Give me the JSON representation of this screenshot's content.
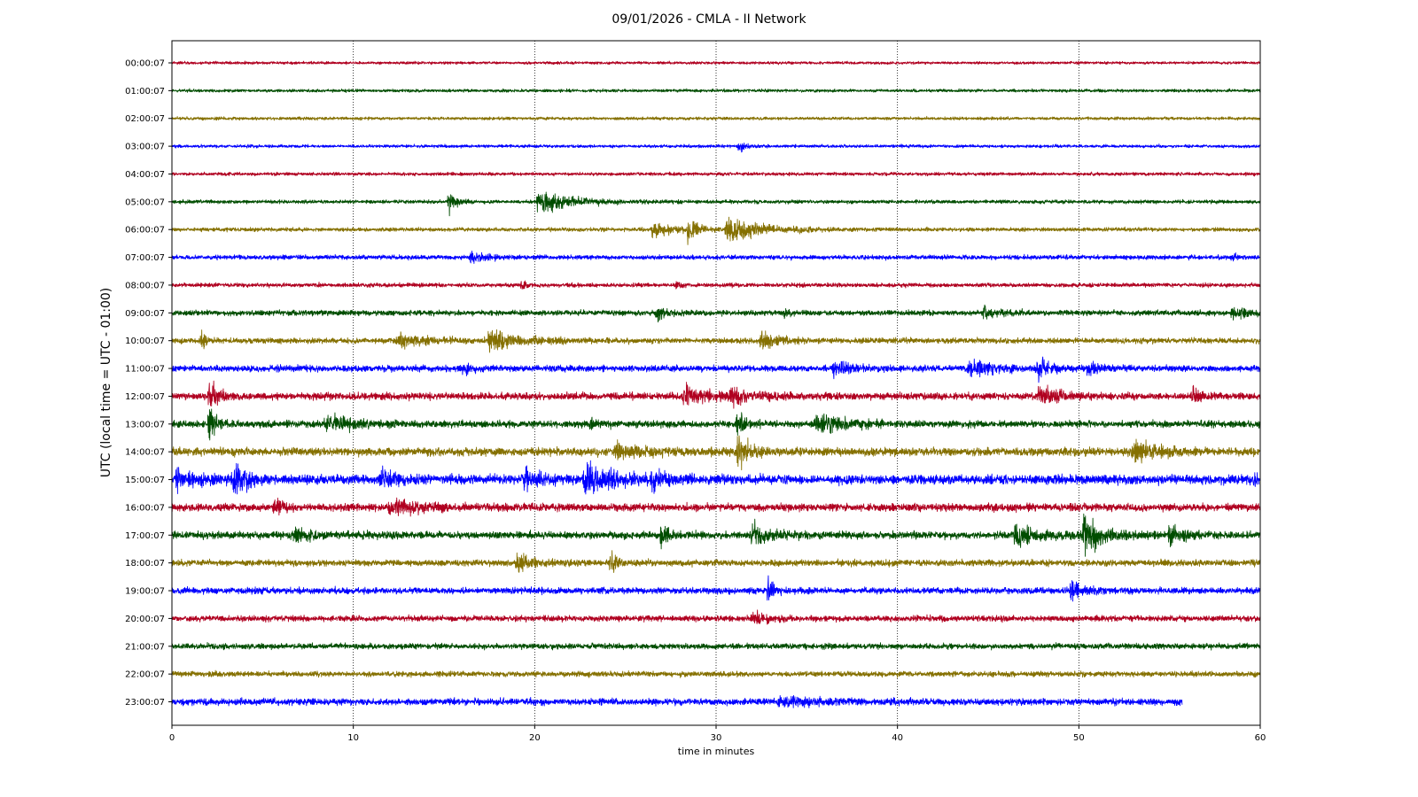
{
  "chart_data": {
    "type": "line",
    "title": "09/01/2026 - CMLA - II Network",
    "xlabel": "time in minutes",
    "ylabel": "UTC (local time = UTC - 01:00)",
    "xlim": [
      0,
      60
    ],
    "x_ticks": [
      "0",
      "10",
      "20",
      "30",
      "40",
      "50",
      "60"
    ],
    "x_tick_values": [
      0,
      10,
      20,
      30,
      40,
      50,
      60
    ],
    "vertical_gridlines": [
      10,
      20,
      30,
      40,
      50
    ],
    "grid": "vertical dotted",
    "colors": [
      "#b00020",
      "#004d00",
      "#857000",
      "#0000ff"
    ],
    "series": [
      {
        "label": "00:00:07",
        "color": "#b00020",
        "noise": 1.0,
        "end": 60,
        "events": []
      },
      {
        "label": "01:00:07",
        "color": "#004d00",
        "noise": 1.1,
        "end": 60,
        "events": []
      },
      {
        "label": "02:00:07",
        "color": "#857000",
        "noise": 1.1,
        "end": 60,
        "events": []
      },
      {
        "label": "03:00:07",
        "color": "#0000ff",
        "noise": 1.1,
        "end": 60,
        "events": [
          {
            "t": 31.3,
            "amp": 5,
            "dur": 0.6
          }
        ]
      },
      {
        "label": "04:00:07",
        "color": "#b00020",
        "noise": 1.2,
        "end": 60,
        "events": []
      },
      {
        "label": "05:00:07",
        "color": "#004d00",
        "noise": 1.3,
        "end": 60,
        "events": [
          {
            "t": 15.3,
            "amp": 8,
            "dur": 1.0
          },
          {
            "t": 20.2,
            "amp": 9,
            "dur": 3.5
          }
        ]
      },
      {
        "label": "06:00:07",
        "color": "#857000",
        "noise": 1.4,
        "end": 60,
        "events": [
          {
            "t": 26.5,
            "amp": 5,
            "dur": 2.5
          },
          {
            "t": 28.5,
            "amp": 10,
            "dur": 0.8
          },
          {
            "t": 30.6,
            "amp": 9,
            "dur": 4.0
          }
        ]
      },
      {
        "label": "07:00:07",
        "color": "#0000ff",
        "noise": 1.6,
        "end": 60,
        "events": [
          {
            "t": 16.5,
            "amp": 4,
            "dur": 1.5
          },
          {
            "t": 58.5,
            "amp": 3,
            "dur": 0.6
          }
        ]
      },
      {
        "label": "08:00:07",
        "color": "#b00020",
        "noise": 1.5,
        "end": 60,
        "events": [
          {
            "t": 19.3,
            "amp": 3,
            "dur": 0.6
          },
          {
            "t": 27.8,
            "amp": 2,
            "dur": 0.6
          }
        ]
      },
      {
        "label": "09:00:07",
        "color": "#004d00",
        "noise": 1.9,
        "end": 60,
        "events": [
          {
            "t": 26.8,
            "amp": 5,
            "dur": 1.2
          },
          {
            "t": 33.8,
            "amp": 3,
            "dur": 0.8
          },
          {
            "t": 44.8,
            "amp": 5,
            "dur": 1.5
          },
          {
            "t": 58.5,
            "amp": 5,
            "dur": 1.5
          }
        ]
      },
      {
        "label": "10:00:07",
        "color": "#857000",
        "noise": 2.0,
        "end": 60,
        "events": [
          {
            "t": 1.6,
            "amp": 7,
            "dur": 0.6
          },
          {
            "t": 12.5,
            "amp": 5,
            "dur": 3.5
          },
          {
            "t": 17.5,
            "amp": 7,
            "dur": 3.5
          },
          {
            "t": 32.5,
            "amp": 6,
            "dur": 2.0
          }
        ]
      },
      {
        "label": "11:00:07",
        "color": "#0000ff",
        "noise": 2.3,
        "end": 60,
        "events": [
          {
            "t": 16,
            "amp": 3,
            "dur": 1.2
          },
          {
            "t": 36.5,
            "amp": 6,
            "dur": 2.0
          },
          {
            "t": 44,
            "amp": 6,
            "dur": 3.0
          },
          {
            "t": 47.8,
            "amp": 7,
            "dur": 1.2
          },
          {
            "t": 50.5,
            "amp": 5,
            "dur": 1.2
          }
        ]
      },
      {
        "label": "12:00:07",
        "color": "#b00020",
        "noise": 2.6,
        "end": 60,
        "events": [
          {
            "t": 2.1,
            "amp": 12,
            "dur": 0.8
          },
          {
            "t": 28.2,
            "amp": 8,
            "dur": 2.5
          },
          {
            "t": 30.8,
            "amp": 5,
            "dur": 2.5
          },
          {
            "t": 47.8,
            "amp": 7,
            "dur": 2.0
          },
          {
            "t": 56.3,
            "amp": 6,
            "dur": 0.6
          }
        ]
      },
      {
        "label": "13:00:07",
        "color": "#004d00",
        "noise": 2.5,
        "end": 60,
        "events": [
          {
            "t": 2.1,
            "amp": 13,
            "dur": 1.0
          },
          {
            "t": 8.5,
            "amp": 4,
            "dur": 4.5
          },
          {
            "t": 23,
            "amp": 4,
            "dur": 1.0
          },
          {
            "t": 31.2,
            "amp": 9,
            "dur": 1.0
          },
          {
            "t": 35.5,
            "amp": 7,
            "dur": 3.0
          }
        ]
      },
      {
        "label": "14:00:07",
        "color": "#857000",
        "noise": 2.9,
        "end": 60,
        "events": [
          {
            "t": 24.5,
            "amp": 5,
            "dur": 4.0
          },
          {
            "t": 31.2,
            "amp": 11,
            "dur": 1.5
          },
          {
            "t": 53,
            "amp": 8,
            "dur": 2.5
          }
        ]
      },
      {
        "label": "15:00:07",
        "color": "#0000ff",
        "noise": 3.4,
        "end": 60,
        "events": [
          {
            "t": 0.3,
            "amp": 6,
            "dur": 2.5
          },
          {
            "t": 3.4,
            "amp": 11,
            "dur": 1.5
          },
          {
            "t": 11.5,
            "amp": 5,
            "dur": 2.5
          },
          {
            "t": 19.5,
            "amp": 6,
            "dur": 2.0
          },
          {
            "t": 22.8,
            "amp": 12,
            "dur": 3.0
          },
          {
            "t": 26.5,
            "amp": 6,
            "dur": 1.5
          },
          {
            "t": 59.7,
            "amp": 6,
            "dur": 0.3
          }
        ]
      },
      {
        "label": "16:00:07",
        "color": "#b00020",
        "noise": 2.8,
        "end": 60,
        "events": [
          {
            "t": 5.6,
            "amp": 6,
            "dur": 1.0
          },
          {
            "t": 12,
            "amp": 4,
            "dur": 5.0
          }
        ]
      },
      {
        "label": "17:00:07",
        "color": "#004d00",
        "noise": 2.7,
        "end": 60,
        "events": [
          {
            "t": 6.8,
            "amp": 5,
            "dur": 1.5
          },
          {
            "t": 27,
            "amp": 7,
            "dur": 1.0
          },
          {
            "t": 32,
            "amp": 9,
            "dur": 2.0
          },
          {
            "t": 46.5,
            "amp": 8,
            "dur": 2.5
          },
          {
            "t": 50.3,
            "amp": 14,
            "dur": 2.0
          },
          {
            "t": 55,
            "amp": 6,
            "dur": 1.5
          }
        ]
      },
      {
        "label": "18:00:07",
        "color": "#857000",
        "noise": 2.3,
        "end": 60,
        "events": [
          {
            "t": 19,
            "amp": 7,
            "dur": 2.0
          },
          {
            "t": 24.2,
            "amp": 7,
            "dur": 0.6
          }
        ]
      },
      {
        "label": "19:00:07",
        "color": "#0000ff",
        "noise": 2.3,
        "end": 60,
        "events": [
          {
            "t": 32.9,
            "amp": 9,
            "dur": 0.6
          },
          {
            "t": 49.6,
            "amp": 7,
            "dur": 1.5
          }
        ]
      },
      {
        "label": "20:00:07",
        "color": "#b00020",
        "noise": 2.1,
        "end": 60,
        "events": [
          {
            "t": 32,
            "amp": 4,
            "dur": 2.0
          }
        ]
      },
      {
        "label": "21:00:07",
        "color": "#004d00",
        "noise": 2.0,
        "end": 60,
        "events": []
      },
      {
        "label": "22:00:07",
        "color": "#857000",
        "noise": 1.9,
        "end": 60,
        "events": []
      },
      {
        "label": "23:00:07",
        "color": "#0000ff",
        "noise": 2.4,
        "end": 55.7,
        "events": [
          {
            "t": 33.5,
            "amp": 3,
            "dur": 5.0
          }
        ]
      }
    ]
  }
}
